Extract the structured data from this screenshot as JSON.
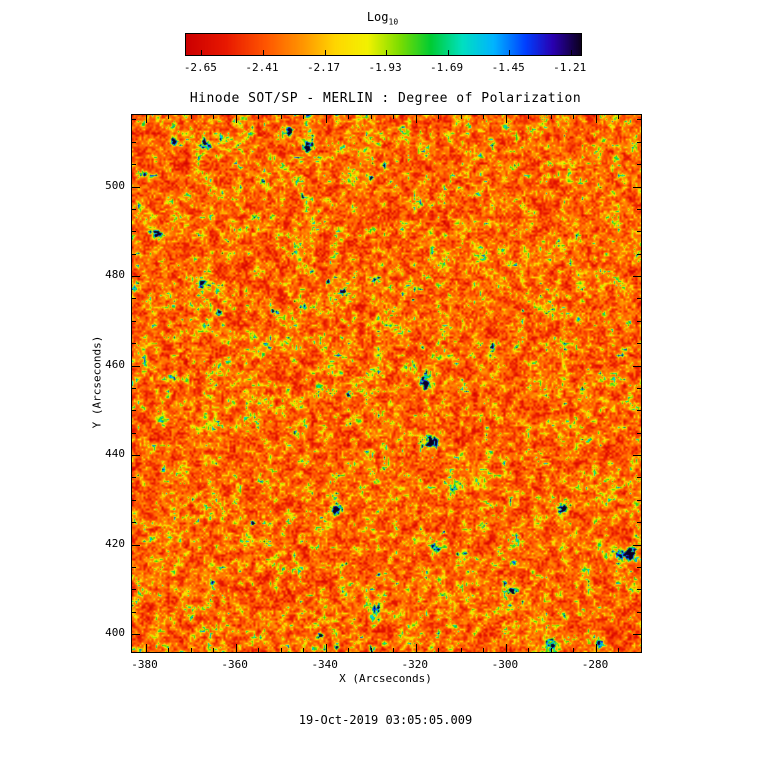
{
  "figure": {
    "timestamp": "19-Oct-2019 03:05:05.009"
  },
  "chart_data": {
    "type": "heatmap",
    "title": "Hinode SOT/SP - MERLIN : Degree of Polarization",
    "xlabel": "X (Arcseconds)",
    "ylabel": "Y (Arcseconds)",
    "x_range": [
      -383,
      -270
    ],
    "y_range": [
      396,
      516
    ],
    "x_ticks": [
      -380,
      -360,
      -340,
      -320,
      -300,
      -280
    ],
    "y_ticks": [
      400,
      420,
      440,
      460,
      480,
      500
    ],
    "minor_tick_step": 5,
    "grid": false,
    "colorbar": {
      "label": "Log",
      "label_sub": "10",
      "range": [
        -2.71,
        -1.17
      ],
      "ticks": [
        -2.65,
        -2.41,
        -2.17,
        -1.93,
        -1.69,
        -1.45,
        -1.21
      ]
    },
    "colormap_stops": [
      [
        0.0,
        "#cc0000"
      ],
      [
        0.1,
        "#e81800"
      ],
      [
        0.2,
        "#ff5500"
      ],
      [
        0.3,
        "#ff9900"
      ],
      [
        0.38,
        "#ffd700"
      ],
      [
        0.46,
        "#f2f200"
      ],
      [
        0.54,
        "#7ddd00"
      ],
      [
        0.62,
        "#00cc33"
      ],
      [
        0.7,
        "#00e0c0"
      ],
      [
        0.78,
        "#00b4ff"
      ],
      [
        0.86,
        "#0040ff"
      ],
      [
        0.93,
        "#2a00b0"
      ],
      [
        1.0,
        "#0d0020"
      ]
    ],
    "field": {
      "description": "Noisy solar polarization map: predominantly low values rendered red/orange, a filamentary network of yellow-green speckles, and sparse high-value cyan/blue/dark spots",
      "seed": 19,
      "value_stats": {
        "mode": -2.55,
        "typical_range": [
          -2.65,
          -2.2
        ],
        "speckle_range": [
          -2.2,
          -1.8
        ],
        "spot_range": [
          -1.8,
          -1.21
        ]
      },
      "thresholds": {
        "t1": 0.64,
        "t2": 0.82
      },
      "blob_count": 55
    }
  }
}
